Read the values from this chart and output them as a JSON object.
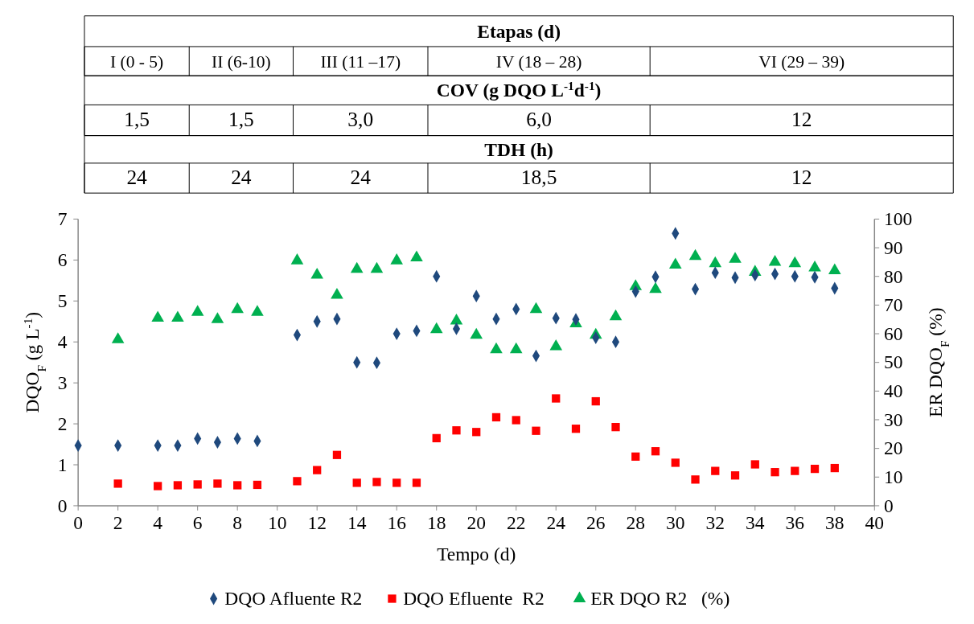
{
  "chart_data": [
    {
      "type": "other",
      "annotations": [
        "Etapas (d)",
        "I (0 - 5)",
        "II (6-10)",
        "III (11 –17)",
        "IV (18 – 28)",
        "VI (29 – 39)",
        "COV (g DQO L$^{-1}$d$^{-1}$)",
        "1,5",
        "1,5",
        "3,0",
        "6,0",
        "12",
        "TDH (h)",
        "24",
        "24",
        "24",
        "18,5",
        "12"
      ]
    },
    {
      "type": "scatter",
      "xlabel": "Tempo (d)",
      "ylabel": "DQO$_{F}$ (g L$^{-1}$)",
      "y2label": "ER DQO$_{F}$ (%)",
      "xlim": [
        0,
        40
      ],
      "xticks": [
        0,
        2,
        4,
        6,
        8,
        10,
        12,
        14,
        16,
        18,
        20,
        22,
        24,
        26,
        28,
        30,
        32,
        34,
        36,
        38,
        40
      ],
      "ylim": [
        0,
        7
      ],
      "yticks": [
        0,
        1,
        2,
        3,
        4,
        5,
        6,
        7
      ],
      "y2lim": [
        0,
        100
      ],
      "y2ticks": [
        0,
        10,
        20,
        30,
        40,
        50,
        60,
        70,
        80,
        90,
        100
      ],
      "grid": false,
      "legend": "bottom",
      "series": [
        {
          "name": "DQO Afluente R2",
          "color": "#1f497d",
          "marker": "diamond",
          "x": [
            0,
            2,
            4,
            5,
            6,
            7,
            8,
            9,
            11,
            12,
            13,
            14,
            15,
            16,
            17,
            18,
            19,
            20,
            21,
            22,
            23,
            24,
            25,
            26,
            27,
            28,
            29,
            30,
            31,
            32,
            33,
            34,
            35,
            36,
            37,
            38
          ],
          "values": [
            1.47,
            1.47,
            1.47,
            1.47,
            1.64,
            1.55,
            1.64,
            1.58,
            4.17,
            4.5,
            4.56,
            3.5,
            3.49,
            4.2,
            4.27,
            5.6,
            4.32,
            5.12,
            4.56,
            4.8,
            3.66,
            4.58,
            4.55,
            4.1,
            4.0,
            5.23,
            5.59,
            6.65,
            5.29,
            5.69,
            5.57,
            5.63,
            5.66,
            5.6,
            5.58,
            5.31
          ]
        },
        {
          "name": "DQO Efluente  R2",
          "color": "#ff0000",
          "marker": "square",
          "x": [
            2,
            4,
            5,
            6,
            7,
            8,
            9,
            11,
            12,
            13,
            14,
            15,
            16,
            17,
            18,
            19,
            20,
            21,
            22,
            23,
            24,
            25,
            26,
            27,
            28,
            29,
            30,
            31,
            32,
            33,
            34,
            35,
            36,
            37,
            38
          ],
          "values": [
            0.54,
            0.48,
            0.5,
            0.52,
            0.54,
            0.5,
            0.51,
            0.6,
            0.87,
            1.24,
            0.56,
            0.58,
            0.56,
            0.56,
            1.65,
            1.84,
            1.8,
            2.16,
            2.09,
            1.83,
            2.62,
            1.88,
            2.55,
            1.92,
            1.2,
            1.33,
            1.05,
            0.64,
            0.85,
            0.74,
            1.01,
            0.82,
            0.85,
            0.9,
            0.92
          ]
        },
        {
          "name": "ER DQO R2   (%)",
          "color": "#00b050",
          "marker": "triangle",
          "axis": "y2",
          "x": [
            2,
            4,
            5,
            6,
            7,
            8,
            9,
            11,
            12,
            13,
            14,
            15,
            16,
            17,
            18,
            19,
            20,
            21,
            22,
            23,
            24,
            25,
            26,
            27,
            28,
            29,
            30,
            31,
            32,
            33,
            34,
            35,
            36,
            37,
            38
          ],
          "values": [
            58,
            65.5,
            65.5,
            67.5,
            65,
            68.5,
            67.5,
            85.5,
            80.5,
            73.5,
            82.5,
            82.5,
            85.5,
            86.5,
            61.5,
            64.5,
            59.5,
            54.5,
            54.5,
            68.5,
            55.5,
            63.5,
            59.5,
            66,
            76.5,
            75.5,
            84,
            87,
            84.5,
            86,
            81.5,
            85,
            84.5,
            83,
            82
          ]
        }
      ]
    }
  ]
}
